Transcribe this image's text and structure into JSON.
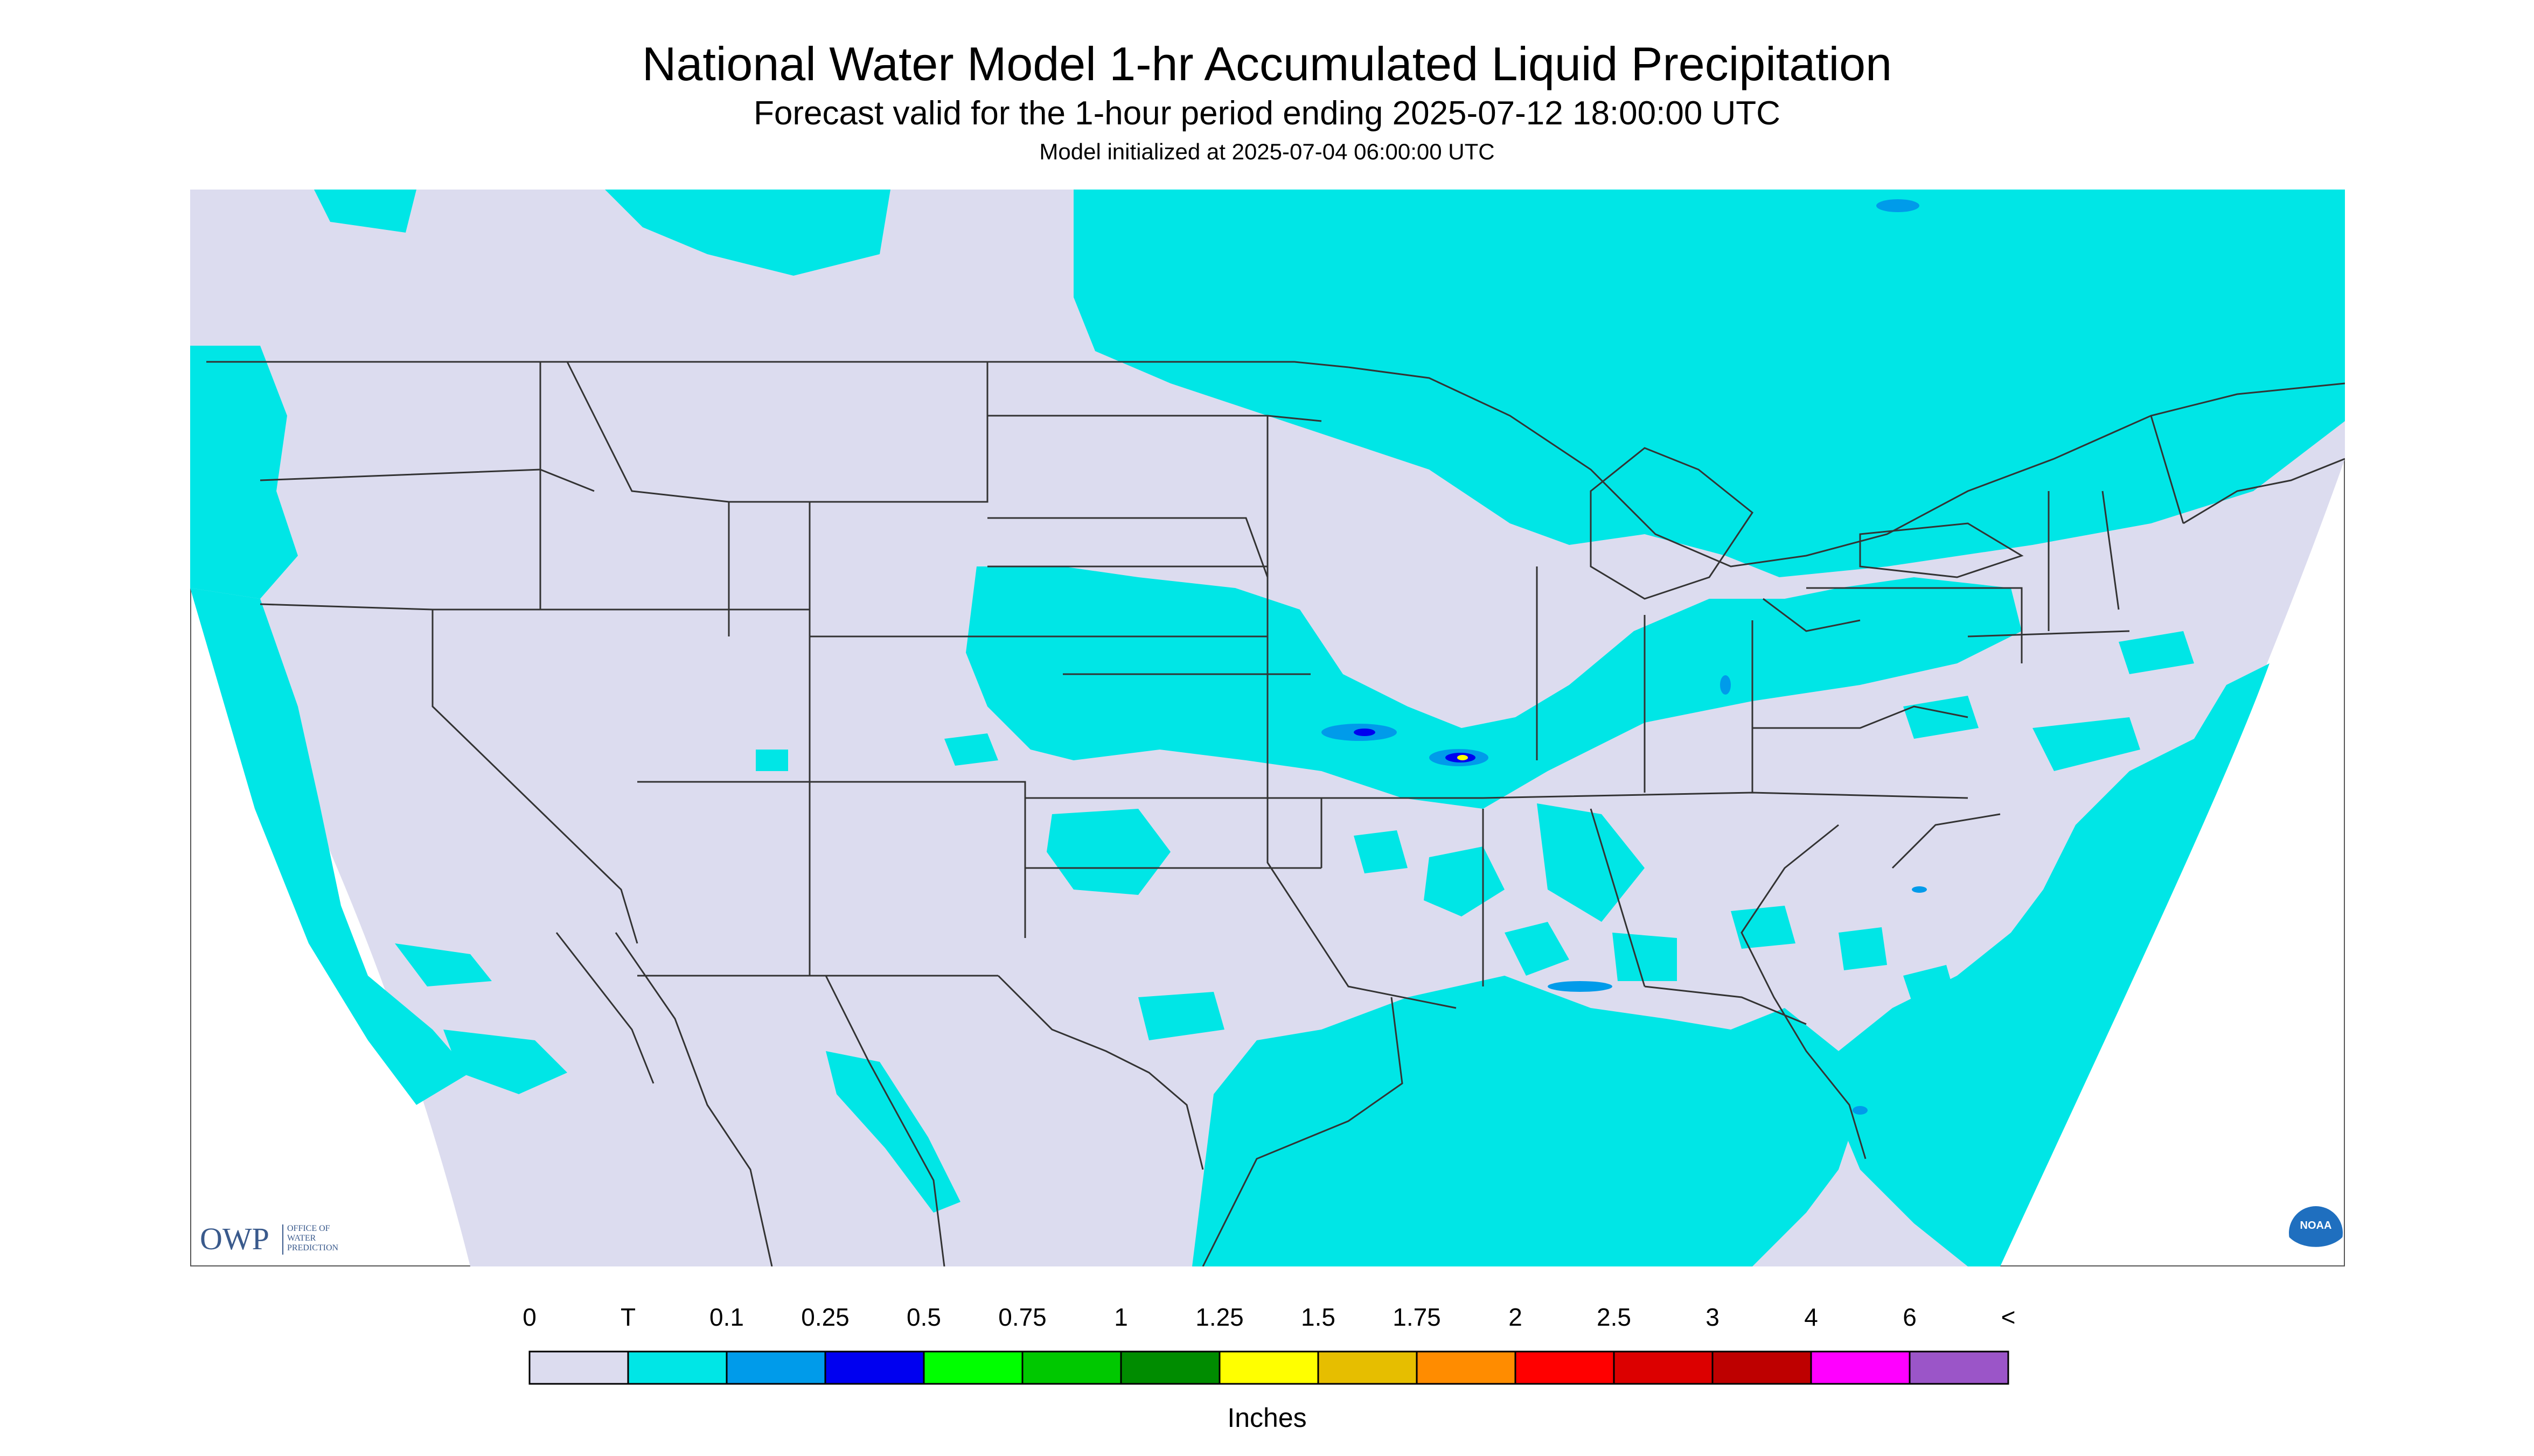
{
  "header": {
    "title": "National Water Model 1-hr Accumulated Liquid Precipitation",
    "subtitle": "Forecast valid for the 1-hour period ending 2025-07-12 18:00:00 UTC",
    "init": "Model initialized at 2025-07-04 06:00:00 UTC"
  },
  "logos": {
    "owp_abbrev": "OWP",
    "owp_full": [
      "OFFICE OF",
      "WATER",
      "PREDICTION"
    ],
    "noaa": "NOAA"
  },
  "map": {
    "no_data_color": "#ffffff",
    "background_color": "#dcdcef",
    "trace_color": "#00e6e6"
  },
  "legend": {
    "labels": [
      "0",
      "T",
      "0.1",
      "0.25",
      "0.5",
      "0.75",
      "1",
      "1.25",
      "1.5",
      "1.75",
      "2",
      "2.5",
      "3",
      "4",
      "6",
      "<"
    ],
    "colors": [
      "#dcdcef",
      "#00e6e6",
      "#009bea",
      "#0000f0",
      "#00ff00",
      "#00c800",
      "#008c00",
      "#ffff00",
      "#e6be00",
      "#ff8c00",
      "#ff0000",
      "#dc0000",
      "#be0000",
      "#ff00ff",
      "#9b55c8"
    ],
    "unit": "Inches"
  }
}
